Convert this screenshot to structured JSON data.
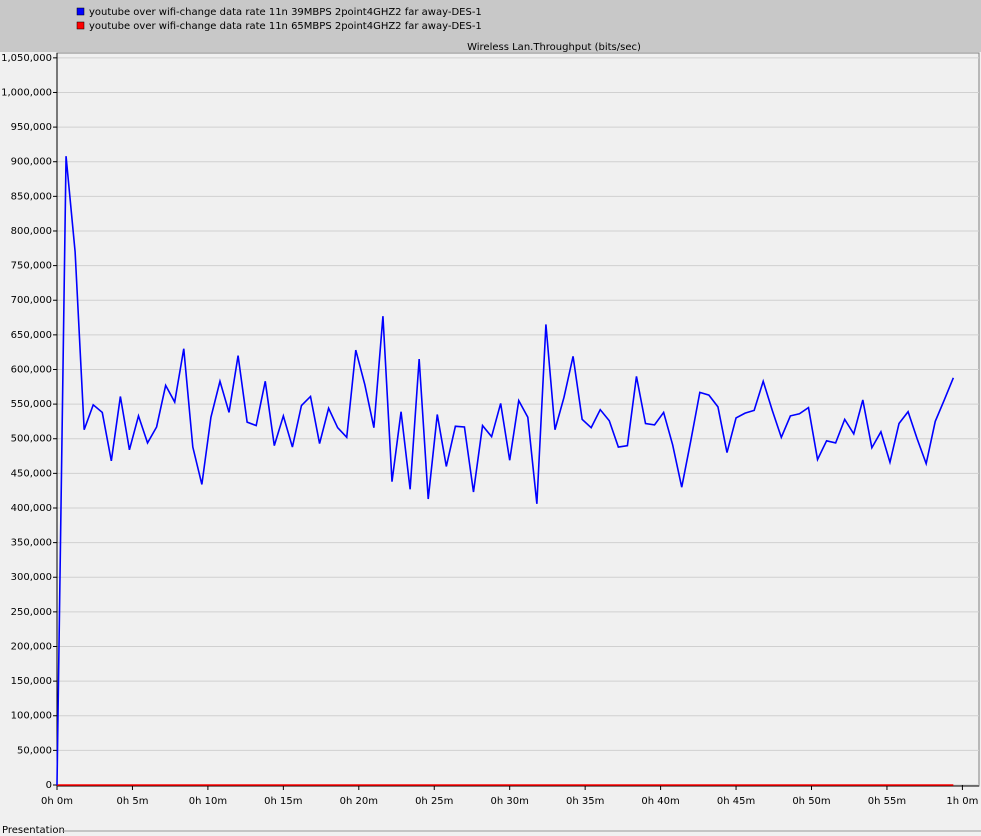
{
  "chart_data": {
    "type": "line",
    "title": "Wireless Lan.Throughput (bits/sec)",
    "x": [
      0,
      0.6,
      1.2,
      1.8,
      2.4,
      3,
      3.6,
      4.2,
      4.8,
      5.4,
      6,
      6.6,
      7.2,
      7.8,
      8.4,
      9,
      9.6,
      10.2,
      10.8,
      11.4,
      12,
      12.6,
      13.2,
      13.8,
      14.4,
      15,
      15.6,
      16.2,
      16.8,
      17.4,
      18,
      18.6,
      19.2,
      19.8,
      20.4,
      21,
      21.6,
      22.2,
      22.8,
      23.4,
      24,
      24.6,
      25.2,
      25.8,
      26.4,
      27,
      27.6,
      28.2,
      28.8,
      29.4,
      30,
      30.6,
      31.2,
      31.8,
      32.4,
      33,
      33.6,
      34.2,
      34.8,
      35.4,
      36,
      36.6,
      37.2,
      37.8,
      38.4,
      39,
      39.6,
      40.2,
      40.8,
      41.4,
      42,
      42.6,
      43.2,
      43.8,
      44.4,
      45,
      45.6,
      46.2,
      46.8,
      47.4,
      48,
      48.6,
      49.2,
      49.8,
      50.4,
      51,
      51.6,
      52.2,
      52.8,
      53.4,
      54,
      54.6,
      55.2,
      55.8,
      56.4,
      57,
      57.6,
      58.2,
      58.8,
      59.4
    ],
    "series": [
      {
        "name": "youtube over wifi-change data rate 11n 39MBPS 2point4GHZ2 far away-DES-1",
        "color": "#0000ff",
        "values": [
          0,
          908000,
          770000,
          513000,
          549000,
          538000,
          468000,
          561000,
          484000,
          533000,
          494000,
          517000,
          577000,
          553000,
          630000,
          488000,
          434000,
          531000,
          583000,
          538000,
          620000,
          524000,
          519000,
          583000,
          490000,
          533000,
          488000,
          548000,
          561000,
          493000,
          544000,
          516000,
          502000,
          628000,
          578000,
          516000,
          677000,
          438000,
          539000,
          427000,
          615000,
          413000,
          535000,
          460000,
          518000,
          517000,
          423000,
          519000,
          503000,
          551000,
          469000,
          555000,
          531000,
          406000,
          665000,
          513000,
          560000,
          619000,
          528000,
          516000,
          542000,
          526000,
          488000,
          490000,
          590000,
          522000,
          520000,
          538000,
          491000,
          430000,
          497000,
          567000,
          563000,
          546000,
          480000,
          530000,
          537000,
          541000,
          583000,
          541000,
          502000,
          533000,
          536000,
          545000,
          470000,
          497000,
          494000,
          528000,
          507000,
          556000,
          487000,
          510000,
          466000,
          522000,
          539000,
          500000,
          464000,
          525000,
          556000,
          588000
        ]
      },
      {
        "name": "youtube over wifi-change data rate 11n 65MBPS 2point4GHZ2 far away-DES-1",
        "color": "#ff0000",
        "values": [
          0,
          0,
          0,
          0,
          0,
          0,
          0,
          0,
          0,
          0,
          0,
          0,
          0,
          0,
          0,
          0,
          0,
          0,
          0,
          0,
          0,
          0,
          0,
          0,
          0,
          0,
          0,
          0,
          0,
          0,
          0,
          0,
          0,
          0,
          0,
          0,
          0,
          0,
          0,
          0,
          0,
          0,
          0,
          0,
          0,
          0,
          0,
          0,
          0,
          0,
          0,
          0,
          0,
          0,
          0,
          0,
          0,
          0,
          0,
          0,
          0,
          0,
          0,
          0,
          0,
          0,
          0,
          0,
          0,
          0,
          0,
          0,
          0,
          0,
          0,
          0,
          0,
          0,
          0,
          0,
          0,
          0,
          0,
          0,
          0,
          0,
          0,
          0,
          0,
          0,
          0,
          0,
          0,
          0,
          0,
          0,
          0,
          0,
          0,
          0
        ]
      }
    ],
    "xlim": [
      0,
      61.1
    ],
    "ylim": [
      0,
      1057000
    ],
    "xticks": [
      {
        "value": 0,
        "label": "0h 0m"
      },
      {
        "value": 5,
        "label": "0h 5m"
      },
      {
        "value": 10,
        "label": "0h 10m"
      },
      {
        "value": 15,
        "label": "0h 15m"
      },
      {
        "value": 20,
        "label": "0h 20m"
      },
      {
        "value": 25,
        "label": "0h 25m"
      },
      {
        "value": 30,
        "label": "0h 30m"
      },
      {
        "value": 35,
        "label": "0h 35m"
      },
      {
        "value": 40,
        "label": "0h 40m"
      },
      {
        "value": 45,
        "label": "0h 45m"
      },
      {
        "value": 50,
        "label": "0h 50m"
      },
      {
        "value": 55,
        "label": "0h 55m"
      },
      {
        "value": 60,
        "label": "1h 0m"
      }
    ],
    "yticks": [
      0,
      {
        "value": 50000,
        "label": "50,000"
      },
      {
        "value": 100000,
        "label": "100,000"
      },
      {
        "value": 150000,
        "label": "150,000"
      },
      {
        "value": 200000,
        "label": "200,000"
      },
      {
        "value": 250000,
        "label": "250,000"
      },
      {
        "value": 300000,
        "label": "300,000"
      },
      {
        "value": 350000,
        "label": "350,000"
      },
      {
        "value": 400000,
        "label": "400,000"
      },
      {
        "value": 450000,
        "label": "450,000"
      },
      {
        "value": 500000,
        "label": "500,000"
      },
      {
        "value": 550000,
        "label": "550,000"
      },
      {
        "value": 600000,
        "label": "600,000"
      },
      {
        "value": 650000,
        "label": "650,000"
      },
      {
        "value": 700000,
        "label": "700,000"
      },
      {
        "value": 750000,
        "label": "750,000"
      },
      {
        "value": 800000,
        "label": "800,000"
      },
      {
        "value": 850000,
        "label": "850,000"
      },
      {
        "value": 900000,
        "label": "900,000"
      },
      {
        "value": 950000,
        "label": "950,000"
      },
      {
        "value": 1000000,
        "label": "1,000,000"
      },
      {
        "value": 1050000,
        "label": "1,050,000"
      }
    ],
    "grid": true
  },
  "footer_label": "Presentation"
}
